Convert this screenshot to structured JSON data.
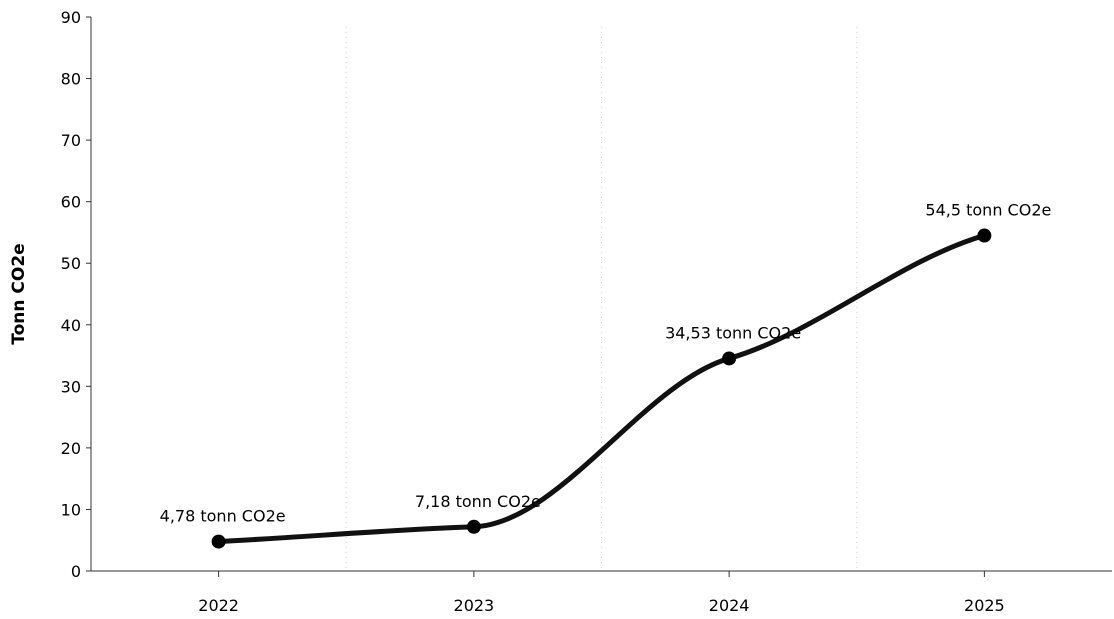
{
  "chart_data": {
    "type": "line",
    "ylabel": "Tonn CO2e",
    "xlabel": "",
    "categories": [
      "2022",
      "2023",
      "2024",
      "2025"
    ],
    "values": [
      4.78,
      7.18,
      34.53,
      54.5
    ],
    "data_labels": [
      "4,78 tonn CO2e",
      "7,18 tonn CO2e",
      "34,53 tonn CO2e",
      "54,5 tonn CO2e"
    ],
    "ylim": [
      0,
      90
    ],
    "yticks": [
      "0",
      "10",
      "20",
      "30",
      "40",
      "50",
      "60",
      "70",
      "80",
      "90"
    ],
    "ytick_values": [
      0,
      10,
      20,
      30,
      40,
      50,
      60,
      70,
      80,
      90
    ],
    "grid": "vertical",
    "smooth": true,
    "line_color": "#111111",
    "marker_color": "#000000"
  }
}
